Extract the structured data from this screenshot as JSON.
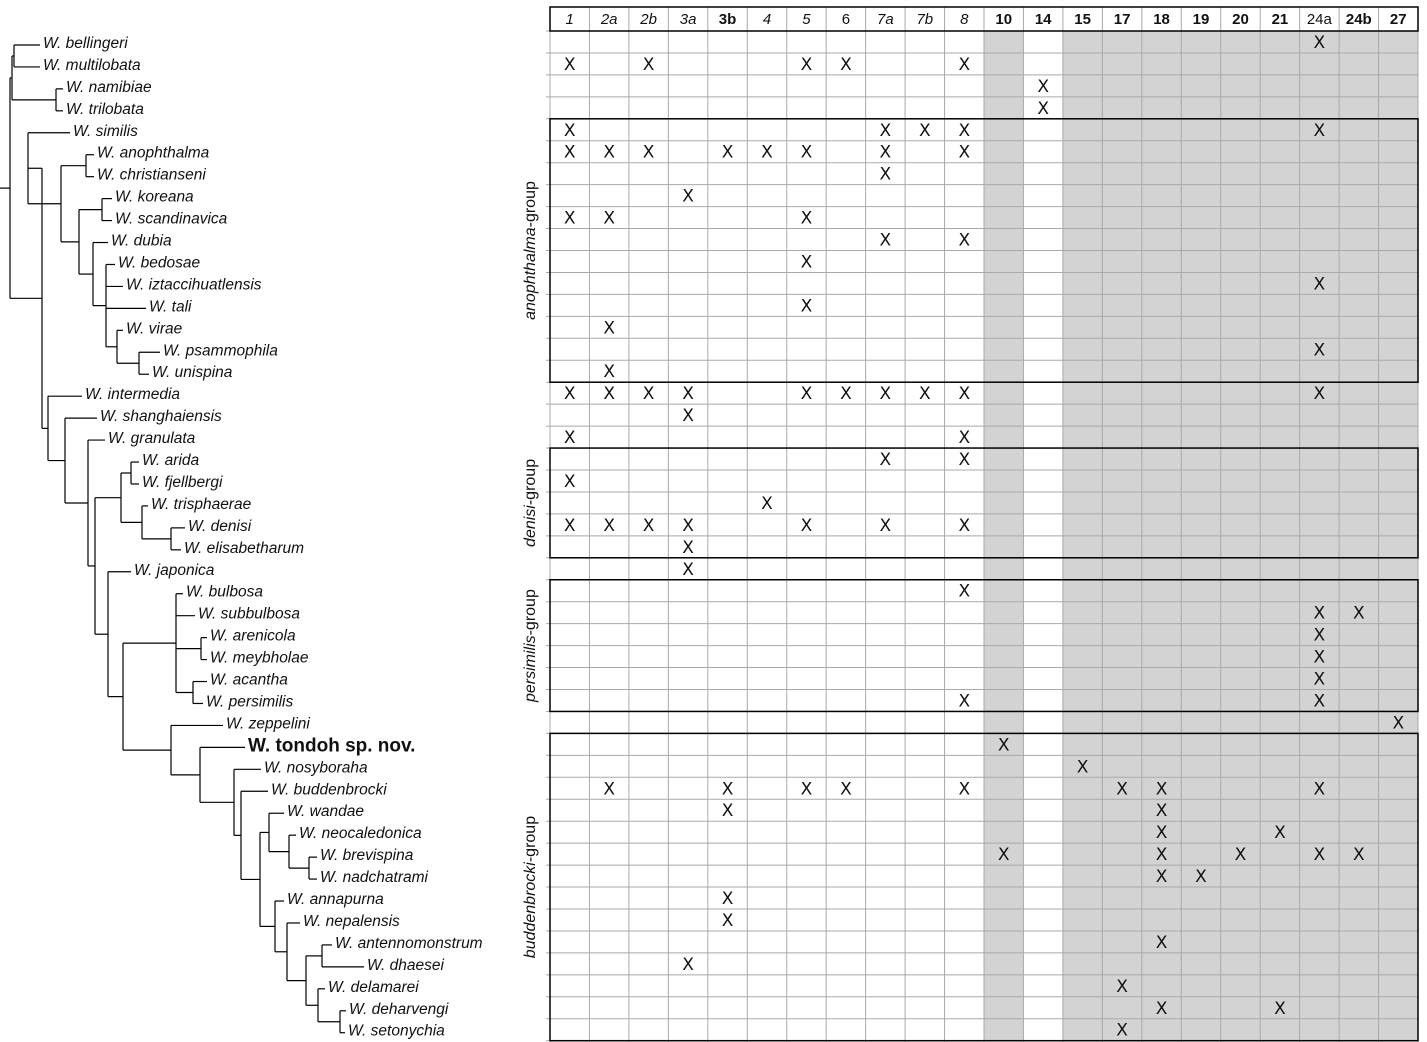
{
  "columns": [
    {
      "label": "1",
      "style": "italic",
      "shaded": false
    },
    {
      "label": "2a",
      "style": "italic",
      "shaded": false
    },
    {
      "label": "2b",
      "style": "italic",
      "shaded": false
    },
    {
      "label": "3a",
      "style": "italic",
      "shaded": false
    },
    {
      "label": "3b",
      "style": "bold",
      "shaded": false
    },
    {
      "label": "4",
      "style": "italic",
      "shaded": false
    },
    {
      "label": "5",
      "style": "italic",
      "shaded": false
    },
    {
      "label": "6",
      "style": "normal",
      "shaded": false
    },
    {
      "label": "7a",
      "style": "italic",
      "shaded": false
    },
    {
      "label": "7b",
      "style": "italic",
      "shaded": false
    },
    {
      "label": "8",
      "style": "italic",
      "shaded": false
    },
    {
      "label": "10",
      "style": "bold",
      "shaded": true
    },
    {
      "label": "14",
      "style": "bold",
      "shaded": false
    },
    {
      "label": "15",
      "style": "bold",
      "shaded": true
    },
    {
      "label": "17",
      "style": "bold",
      "shaded": true
    },
    {
      "label": "18",
      "style": "bold",
      "shaded": true
    },
    {
      "label": "19",
      "style": "bold",
      "shaded": true
    },
    {
      "label": "20",
      "style": "bold",
      "shaded": true
    },
    {
      "label": "21",
      "style": "bold",
      "shaded": true
    },
    {
      "label": "24a",
      "style": "normal",
      "shaded": true
    },
    {
      "label": "24b",
      "style": "bold",
      "shaded": true
    },
    {
      "label": "27",
      "style": "bold",
      "shaded": true
    }
  ],
  "taxa": [
    {
      "name": "W. bellingeri",
      "marks": [
        "24a"
      ]
    },
    {
      "name": "W. multilobata",
      "marks": [
        "1",
        "2b",
        "5",
        "6",
        "8"
      ]
    },
    {
      "name": "W. namibiae",
      "marks": [
        "14"
      ]
    },
    {
      "name": "W. trilobata",
      "marks": [
        "14"
      ]
    },
    {
      "name": "W. similis",
      "marks": [
        "1",
        "7a",
        "7b",
        "8",
        "24a"
      ]
    },
    {
      "name": "W. anophthalma",
      "marks": [
        "1",
        "2a",
        "2b",
        "3b",
        "4",
        "5",
        "7a",
        "8"
      ]
    },
    {
      "name": "W. christianseni",
      "marks": [
        "7a"
      ]
    },
    {
      "name": "W. koreana",
      "marks": [
        "3a"
      ]
    },
    {
      "name": "W. scandinavica",
      "marks": [
        "1",
        "2a",
        "5"
      ]
    },
    {
      "name": "W. dubia",
      "marks": [
        "7a",
        "8"
      ]
    },
    {
      "name": "W. bedosae",
      "marks": [
        "5"
      ]
    },
    {
      "name": "W. iztaccihuatlensis",
      "marks": [
        "24a"
      ]
    },
    {
      "name": "W. tali",
      "marks": [
        "5"
      ]
    },
    {
      "name": "W. virae",
      "marks": [
        "2a"
      ]
    },
    {
      "name": "W. psammophila",
      "marks": [
        "24a"
      ]
    },
    {
      "name": "W. unispina",
      "marks": [
        "2a"
      ]
    },
    {
      "name": "W. intermedia",
      "marks": [
        "1",
        "2a",
        "2b",
        "3a",
        "5",
        "6",
        "7a",
        "7b",
        "8",
        "24a"
      ]
    },
    {
      "name": "W. shanghaiensis",
      "marks": [
        "3a"
      ]
    },
    {
      "name": "W. granulata",
      "marks": [
        "1",
        "8"
      ]
    },
    {
      "name": "W. arida",
      "marks": [
        "7a",
        "8"
      ]
    },
    {
      "name": "W. fjellbergi",
      "marks": [
        "1"
      ]
    },
    {
      "name": "W. trisphaerae",
      "marks": [
        "4"
      ]
    },
    {
      "name": "W. denisi",
      "marks": [
        "1",
        "2a",
        "2b",
        "3a",
        "5",
        "7a",
        "8"
      ]
    },
    {
      "name": "W. elisabetharum",
      "marks": [
        "3a"
      ]
    },
    {
      "name": "W. japonica",
      "marks": [
        "3a"
      ]
    },
    {
      "name": "W. bulbosa",
      "marks": [
        "8"
      ]
    },
    {
      "name": "W. subbulbosa",
      "marks": [
        "24a",
        "24b"
      ]
    },
    {
      "name": "W. arenicola",
      "marks": [
        "24a"
      ]
    },
    {
      "name": "W. meybholae",
      "marks": [
        "24a"
      ]
    },
    {
      "name": "W. acantha",
      "marks": [
        "24a"
      ]
    },
    {
      "name": "W. persimilis",
      "marks": [
        "8",
        "24a"
      ]
    },
    {
      "name": "W. zeppelini",
      "marks": [
        "27"
      ]
    },
    {
      "name": "W. tondoh sp. nov.",
      "marks": [
        "10"
      ],
      "highlight": true
    },
    {
      "name": "W. nosyboraha",
      "marks": [
        "15"
      ]
    },
    {
      "name": "W. buddenbrocki",
      "marks": [
        "2a",
        "3b",
        "5",
        "6",
        "8",
        "17",
        "18",
        "24a"
      ]
    },
    {
      "name": "W. wandae",
      "marks": [
        "3b",
        "18"
      ]
    },
    {
      "name": "W. neocaledonica",
      "marks": [
        "18",
        "21"
      ]
    },
    {
      "name": "W. brevispina",
      "marks": [
        "10",
        "18",
        "20",
        "24a",
        "24b"
      ]
    },
    {
      "name": "W. nadchatrami",
      "marks": [
        "18",
        "19"
      ]
    },
    {
      "name": "W. annapurna",
      "marks": [
        "3b"
      ]
    },
    {
      "name": "W. nepalensis",
      "marks": [
        "3b"
      ]
    },
    {
      "name": "W. antennomonstrum",
      "marks": [
        "18"
      ]
    },
    {
      "name": "W. dhaesei",
      "marks": [
        "3a"
      ]
    },
    {
      "name": "W. delamarei",
      "marks": [
        "17"
      ]
    },
    {
      "name": "W. deharvengi",
      "marks": [
        "18",
        "21"
      ]
    },
    {
      "name": "W. setonychia",
      "marks": [
        "17"
      ]
    }
  ],
  "groups": [
    {
      "name": "anophthalma",
      "suffix": "-group",
      "from": 4,
      "to": 15
    },
    {
      "name": "denisi",
      "suffix": "-group",
      "from": 19,
      "to": 23
    },
    {
      "name": "persimilis",
      "suffix": "-group",
      "from": 25,
      "to": 30
    },
    {
      "name": "buddenbrocki",
      "suffix": "-group",
      "from": 32,
      "to": 45
    }
  ],
  "tree_nodes": [
    {
      "id": "n1",
      "children": [
        0,
        1
      ]
    },
    {
      "id": "n2",
      "children": [
        2,
        3
      ]
    },
    {
      "id": "n3",
      "children": [
        "n1",
        "n2"
      ]
    },
    {
      "id": "n4",
      "children": [
        5,
        6
      ]
    },
    {
      "id": "n5",
      "children": [
        7,
        8
      ]
    },
    {
      "id": "n6",
      "children": [
        14,
        15
      ]
    },
    {
      "id": "n7",
      "children": [
        13,
        "n6"
      ]
    },
    {
      "id": "n8",
      "children": [
        10,
        11,
        12,
        "n7"
      ]
    },
    {
      "id": "n9",
      "children": [
        9,
        "n8"
      ]
    },
    {
      "id": "n10",
      "children": [
        "n5",
        "n9"
      ]
    },
    {
      "id": "n11",
      "children": [
        "n4",
        "n10"
      ]
    },
    {
      "id": "n12",
      "children": [
        4,
        "n11"
      ]
    },
    {
      "id": "n13",
      "children": [
        19,
        20
      ]
    },
    {
      "id": "n14",
      "children": [
        22,
        23
      ]
    },
    {
      "id": "n15",
      "children": [
        21,
        "n14"
      ]
    },
    {
      "id": "n16",
      "children": [
        "n13",
        "n15"
      ]
    },
    {
      "id": "n17",
      "children": [
        27,
        28
      ]
    },
    {
      "id": "n18",
      "children": [
        29,
        30
      ]
    },
    {
      "id": "n19",
      "children": [
        25,
        26,
        "n17",
        "n18"
      ]
    },
    {
      "id": "n20",
      "children": [
        37,
        38
      ]
    },
    {
      "id": "n21",
      "children": [
        36,
        "n20"
      ]
    },
    {
      "id": "n22",
      "children": [
        35,
        "n21"
      ]
    },
    {
      "id": "n23",
      "children": [
        41,
        42
      ]
    },
    {
      "id": "n24",
      "children": [
        44,
        45
      ]
    },
    {
      "id": "n25",
      "children": [
        43,
        "n24"
      ]
    },
    {
      "id": "n26",
      "children": [
        "n23",
        "n25"
      ]
    },
    {
      "id": "n27",
      "children": [
        40,
        "n26"
      ]
    },
    {
      "id": "n28",
      "children": [
        39,
        "n27"
      ]
    },
    {
      "id": "n29",
      "children": [
        "n22",
        "n28"
      ]
    },
    {
      "id": "n30",
      "children": [
        34,
        "n29"
      ]
    },
    {
      "id": "n31",
      "children": [
        33,
        "n30"
      ]
    },
    {
      "id": "n32",
      "children": [
        32,
        "n31"
      ]
    },
    {
      "id": "n33",
      "children": [
        31,
        "n32"
      ]
    },
    {
      "id": "n34",
      "children": [
        "n19",
        "n33"
      ]
    },
    {
      "id": "n35",
      "children": [
        24,
        "n34"
      ]
    },
    {
      "id": "n36",
      "children": [
        "n16",
        "n35"
      ]
    },
    {
      "id": "n37",
      "children": [
        18,
        "n36"
      ]
    },
    {
      "id": "n38",
      "children": [
        17,
        "n37"
      ]
    },
    {
      "id": "n39",
      "children": [
        16,
        "n38"
      ]
    },
    {
      "id": "n40",
      "children": [
        "n12",
        "n39"
      ]
    },
    {
      "id": "root",
      "children": [
        "n3",
        "n40"
      ]
    }
  ],
  "colors": {
    "shade": "#d3d3d3",
    "grid": "#a9a9a9",
    "line": "#000000"
  }
}
